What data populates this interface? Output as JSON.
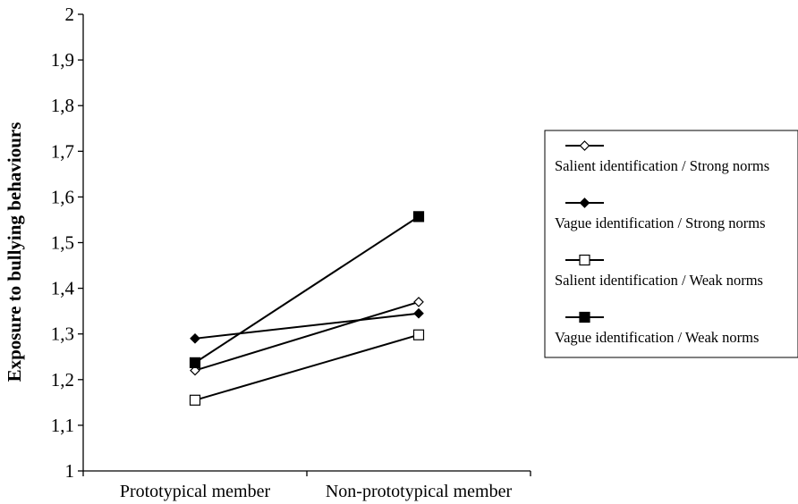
{
  "chart_data": {
    "type": "line",
    "title": "",
    "xlabel": "",
    "ylabel": "Exposure to bullying behaviours",
    "categories": [
      "Prototypical member",
      "Non-prototypical member"
    ],
    "ylim": [
      1,
      2
    ],
    "yticks": [
      "1",
      "1,1",
      "1,2",
      "1,3",
      "1,4",
      "1,5",
      "1,6",
      "1,7",
      "1,8",
      "1,9",
      "2"
    ],
    "grid": false,
    "legend_position": "right",
    "series": [
      {
        "name": "Salient identification / Strong norms",
        "marker": "open-diamond",
        "values": [
          1.22,
          1.37
        ]
      },
      {
        "name": "Vague identification / Strong norms",
        "marker": "filled-diamond",
        "values": [
          1.29,
          1.345
        ]
      },
      {
        "name": "Salient identification / Weak norms",
        "marker": "open-square",
        "values": [
          1.155,
          1.298
        ]
      },
      {
        "name": "Vague identification / Weak norms",
        "marker": "filled-square",
        "values": [
          1.237,
          1.557
        ]
      }
    ]
  }
}
